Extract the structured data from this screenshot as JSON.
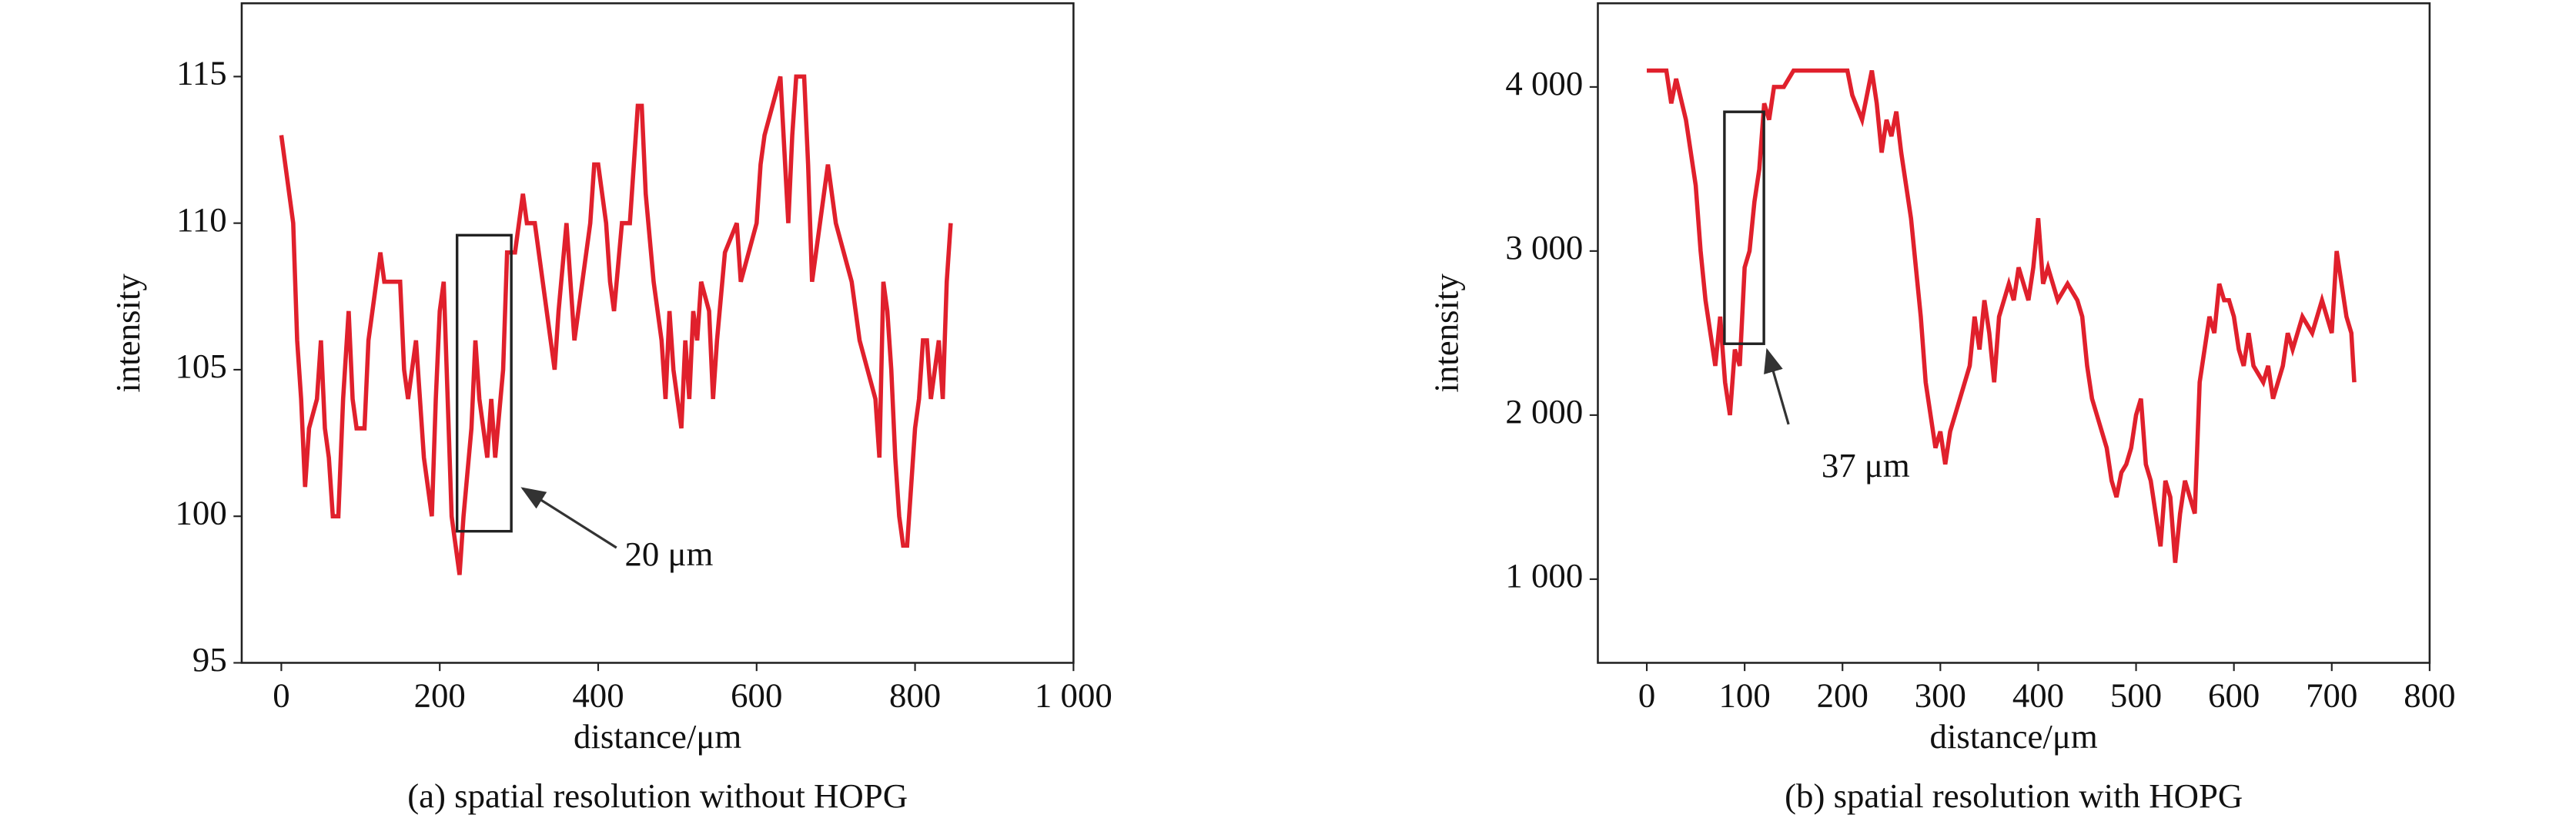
{
  "chart_data": [
    {
      "type": "line",
      "caption": "(a) spatial resolution without HOPG",
      "xlabel": "distance/μm",
      "ylabel": "intensity",
      "annotation": "20 μm",
      "color": "#e0202c",
      "xlim": [
        -50,
        1000
      ],
      "ylim": [
        95,
        117.5
      ],
      "xticks": [
        0,
        200,
        400,
        600,
        800,
        {
          "value": 1000,
          "label": "1 000"
        }
      ],
      "yticks": [
        95,
        100,
        105,
        110,
        115
      ],
      "x": [
        0,
        5,
        15,
        20,
        25,
        30,
        35,
        45,
        50,
        55,
        60,
        65,
        72,
        78,
        85,
        90,
        95,
        105,
        110,
        120,
        125,
        130,
        140,
        150,
        155,
        160,
        170,
        175,
        180,
        185,
        190,
        195,
        200,
        205,
        210,
        215,
        220,
        225,
        230,
        240,
        245,
        250,
        255,
        260,
        265,
        270,
        280,
        285,
        295,
        300,
        305,
        310,
        320,
        330,
        340,
        345,
        350,
        360,
        365,
        370,
        380,
        390,
        395,
        400,
        410,
        415,
        420,
        430,
        440,
        445,
        450,
        455,
        460,
        470,
        480,
        485,
        490,
        495,
        500,
        505,
        510,
        515,
        520,
        525,
        530,
        540,
        545,
        550,
        560,
        575,
        580,
        590,
        600,
        605,
        610,
        620,
        630,
        640,
        645,
        650,
        660,
        665,
        670,
        680,
        690,
        700,
        710,
        720,
        730,
        740,
        750,
        755,
        760,
        765,
        770,
        775,
        780,
        785,
        790,
        795,
        800,
        805,
        810,
        815,
        820,
        825,
        830,
        835,
        840,
        845
      ],
      "values": [
        113,
        112,
        110,
        106,
        104,
        101,
        103,
        104,
        106,
        103,
        102,
        100,
        100,
        104,
        107,
        104,
        103,
        103,
        106,
        108,
        109,
        108,
        108,
        108,
        105,
        104,
        106,
        104,
        102,
        101,
        100,
        104,
        107,
        108,
        104,
        100,
        99,
        98,
        100,
        103,
        106,
        104,
        103,
        102,
        104,
        102,
        105,
        109,
        109,
        110,
        111,
        110,
        110,
        108,
        106,
        105,
        107,
        110,
        108,
        106,
        108,
        110,
        112,
        112,
        110,
        108,
        107,
        110,
        110,
        112,
        114,
        114,
        111,
        108,
        106,
        104,
        107,
        105,
        104,
        103,
        106,
        104,
        107,
        106,
        108,
        107,
        104,
        106,
        109,
        110,
        108,
        109,
        110,
        112,
        113,
        114,
        115,
        110,
        113,
        115,
        115,
        112,
        108,
        110,
        112,
        110,
        109,
        108,
        106,
        105,
        104,
        102,
        108,
        107,
        105,
        102,
        100,
        99,
        99,
        101,
        103,
        104,
        106,
        106,
        104,
        105,
        106,
        104,
        108,
        110
      ]
    },
    {
      "type": "line",
      "caption": "(b) spatial resolution with HOPG",
      "xlabel": "distance/μm",
      "ylabel": "intensity",
      "annotation": "37 μm",
      "color": "#e0202c",
      "xlim": [
        -50,
        800
      ],
      "ylim": [
        490,
        4510
      ],
      "xticks": [
        0,
        100,
        200,
        300,
        400,
        500,
        600,
        700,
        800
      ],
      "yticks": [
        {
          "value": 1000,
          "label": "1 000"
        },
        {
          "value": 2000,
          "label": "2 000"
        },
        {
          "value": 3000,
          "label": "3 000"
        },
        {
          "value": 4000,
          "label": "4 000"
        }
      ],
      "x": [
        0,
        20,
        25,
        30,
        40,
        50,
        55,
        60,
        65,
        70,
        75,
        80,
        85,
        90,
        95,
        100,
        105,
        110,
        115,
        120,
        125,
        130,
        140,
        150,
        170,
        190,
        205,
        210,
        220,
        230,
        235,
        240,
        245,
        250,
        255,
        260,
        265,
        270,
        275,
        280,
        285,
        290,
        295,
        300,
        305,
        310,
        320,
        330,
        335,
        340,
        345,
        350,
        355,
        360,
        370,
        375,
        380,
        385,
        390,
        395,
        400,
        405,
        410,
        420,
        430,
        440,
        445,
        450,
        455,
        460,
        470,
        475,
        480,
        485,
        490,
        495,
        500,
        505,
        510,
        515,
        520,
        525,
        530,
        535,
        540,
        545,
        550,
        560,
        565,
        570,
        575,
        580,
        585,
        590,
        595,
        600,
        605,
        610,
        615,
        620,
        630,
        635,
        640,
        650,
        655,
        660,
        670,
        680,
        690,
        700,
        705,
        710,
        715,
        720,
        723
      ],
      "values": [
        4100,
        4100,
        3900,
        4050,
        3800,
        3400,
        3000,
        2700,
        2500,
        2300,
        2600,
        2200,
        2000,
        2400,
        2300,
        2900,
        3000,
        3300,
        3500,
        3900,
        3800,
        4000,
        4000,
        4100,
        4100,
        4100,
        4100,
        3950,
        3800,
        4100,
        3900,
        3600,
        3800,
        3700,
        3850,
        3600,
        3400,
        3200,
        2900,
        2600,
        2200,
        2000,
        1800,
        1900,
        1700,
        1900,
        2100,
        2300,
        2600,
        2400,
        2700,
        2500,
        2200,
        2600,
        2800,
        2700,
        2900,
        2800,
        2700,
        2900,
        3200,
        2800,
        2900,
        2700,
        2800,
        2700,
        2600,
        2300,
        2100,
        2000,
        1800,
        1600,
        1500,
        1650,
        1700,
        1800,
        2000,
        2100,
        1700,
        1600,
        1400,
        1200,
        1600,
        1500,
        1100,
        1400,
        1600,
        1400,
        2200,
        2400,
        2600,
        2500,
        2800,
        2700,
        2700,
        2600,
        2400,
        2300,
        2500,
        2300,
        2200,
        2300,
        2100,
        2300,
        2500,
        2400,
        2600,
        2500,
        2700,
        2500,
        3000,
        2800,
        2600,
        2500,
        2200
      ]
    }
  ]
}
